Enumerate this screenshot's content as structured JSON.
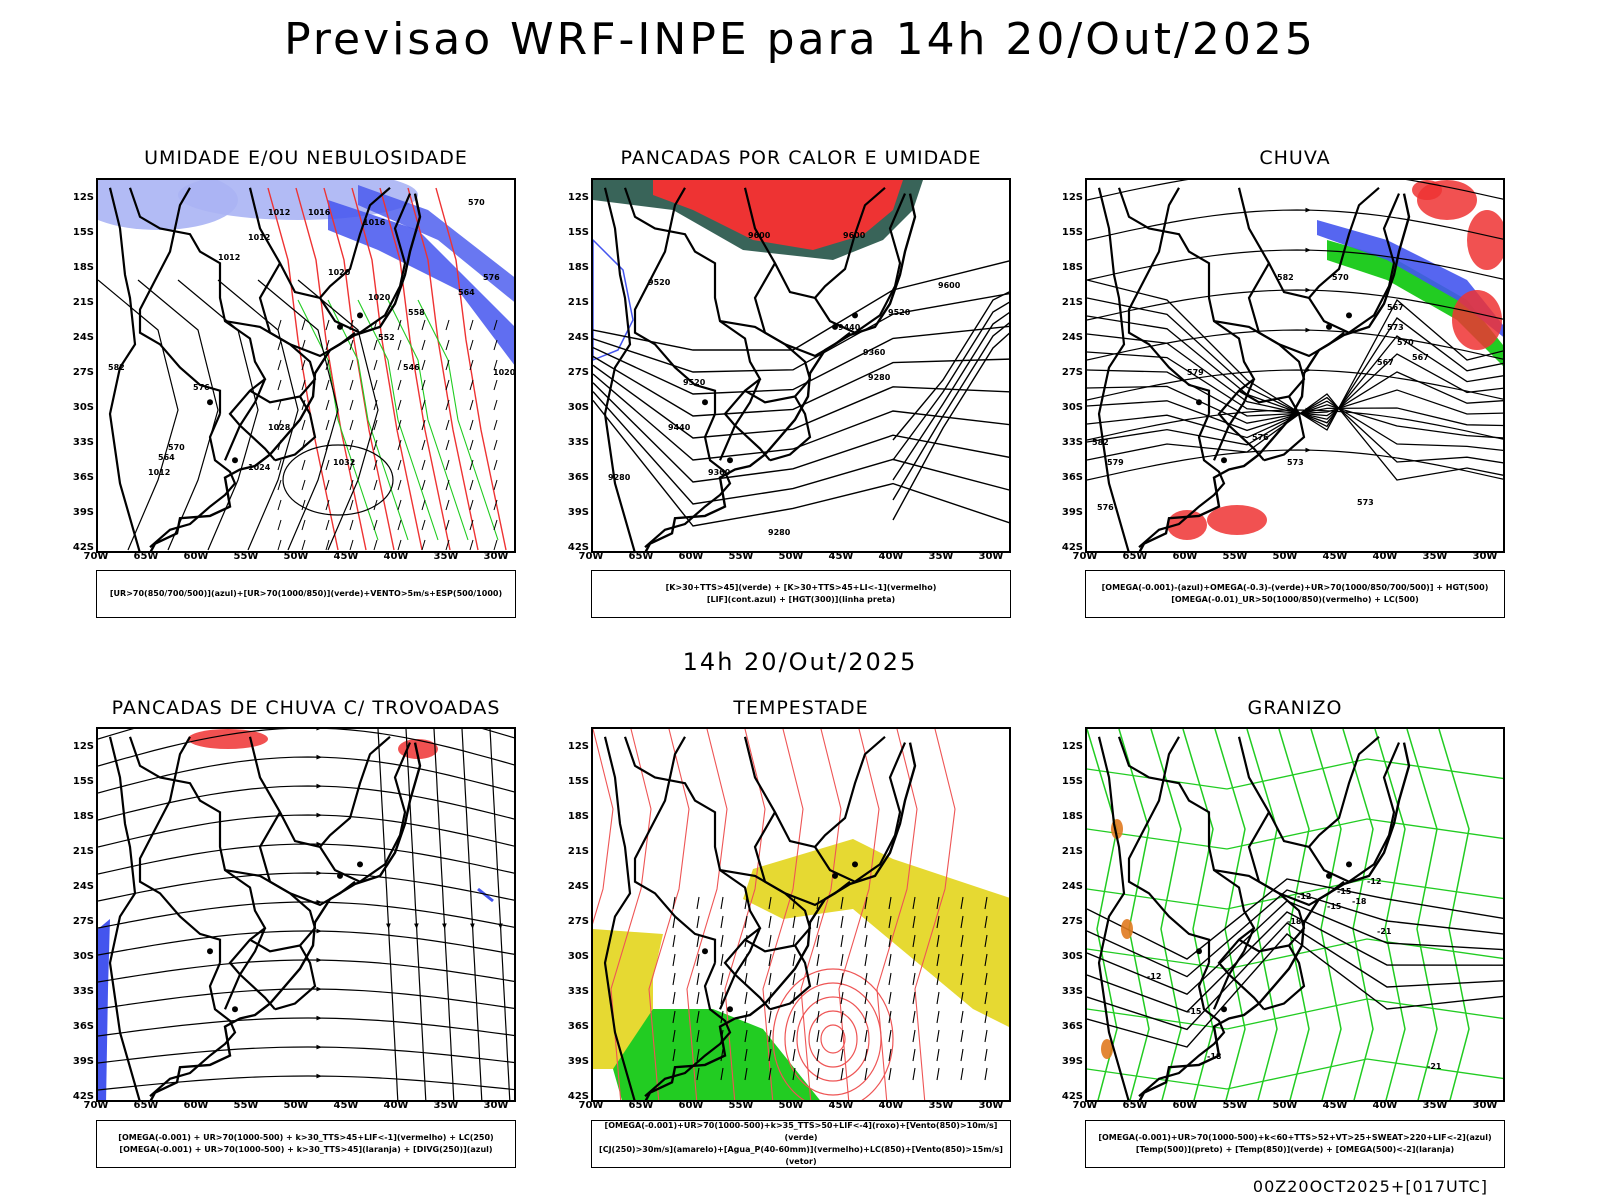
{
  "title": "Previsao WRF-INPE  para 14h 20/Out/2025",
  "mid_time": "14h 20/Out/2025",
  "stamp": "00Z20OCT2025+[017UTC]",
  "lat_ticks": [
    "12S",
    "15S",
    "18S",
    "21S",
    "24S",
    "27S",
    "30S",
    "33S",
    "36S",
    "39S",
    "42S"
  ],
  "lon_ticks": [
    "70W",
    "65W",
    "60W",
    "55W",
    "50W",
    "45W",
    "40W",
    "35W",
    "30W"
  ],
  "panels": [
    {
      "title": "UMIDADE E/OU NEBULOSIDADE",
      "legend": [
        "[UR>70(850/700/500)](azul)+[UR>70(1000/850)](verde)+VENTO>5m/s+ESP(500/1000)"
      ],
      "labels": [
        "1012",
        "1016",
        "1012",
        "1012",
        "1020",
        "1016",
        "1020",
        "1028",
        "1032",
        "1024",
        "1012",
        "570",
        "576",
        "564",
        "558",
        "552",
        "546",
        "1020",
        "582",
        "576",
        "570",
        "564"
      ]
    },
    {
      "title": "PANCADAS POR CALOR E UMIDADE",
      "legend": [
        "[K>30+TTS>45](verde) + [K>30+TTS>45+LI<-1](vermelho)",
        "[LIF](cont.azul) + [HGT(300)](linha preta)"
      ],
      "labels": [
        "9600",
        "9600",
        "9600",
        "9520",
        "9520",
        "9440",
        "9360",
        "9280",
        "9440",
        "9360",
        "9280",
        "9280",
        "9520"
      ]
    },
    {
      "title": "CHUVA",
      "legend": [
        "[OMEGA(-0.001)-(azul)+OMEGA(-0.3)-(verde)+UR>70(1000/850/700/500)] + HGT(500)",
        "[OMEGA(-0.01)_UR>50(1000/850)(vermelho) + LC(500)"
      ],
      "labels": [
        "582",
        "579",
        "576",
        "573",
        "570",
        "567",
        "573",
        "576",
        "579",
        "582",
        "573",
        "570",
        "567",
        "567"
      ]
    },
    {
      "title": "PANCADAS DE CHUVA C/ TROVOADAS",
      "legend": [
        "[OMEGA(-0.001) + UR>70(1000-500) + k>30_TTS>45+LIF<-1](vermelho) + LC(250)",
        "[OMEGA(-0.001) + UR>70(1000-500) + k>30_TTS>45](laranja) + [DIVG(250)](azul)"
      ],
      "labels": []
    },
    {
      "title": "TEMPESTADE",
      "legend": [
        "[OMEGA(-0.001)+UR>70(1000-500)+k>35_TTS>50+LIF<-4](roxo)+[Vento(850)>10m/s](verde)",
        "[CJ(250)>30m/s](amarelo)+[Agua_P(40-60mm)](vermelho)+LC(850)+[Vento(850)>15m/s](vetor)"
      ],
      "labels": []
    },
    {
      "title": "GRANIZO",
      "legend": [
        "[OMEGA(-0.001)+UR>70(1000-500)+k<60+TTS>52+VT>25+SWEAT>220+LIF<-2](azul)",
        "[Temp(500)](preto) + [Temp(850)](verde) + [OMEGA(500)<-2](laranja)"
      ],
      "labels": [
        "-12",
        "-15",
        "-18",
        "-21",
        "-12",
        "-15",
        "-18",
        "-21",
        "-12",
        "-15",
        "-18"
      ]
    }
  ],
  "colors": {
    "red": "#ee3333",
    "green": "#22cc22",
    "blue": "#4455ee",
    "lightblue": "#aab4f4",
    "darkteal": "#2e5c50",
    "yellow": "#e6d932",
    "orange": "#e07a20",
    "coral": "#ee5555"
  }
}
